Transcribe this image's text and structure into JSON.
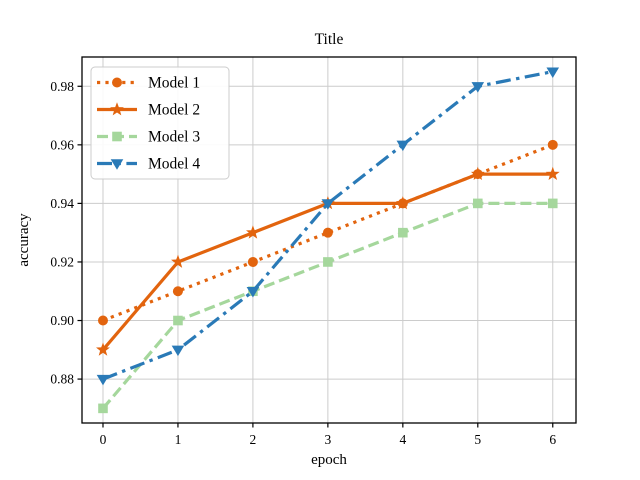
{
  "chart_data": {
    "type": "line",
    "title": "Title",
    "xlabel": "epoch",
    "ylabel": "accuracy",
    "x": [
      0,
      1,
      2,
      3,
      4,
      5,
      6
    ],
    "x_tick_labels": [
      "0",
      "1",
      "2",
      "3",
      "4",
      "5",
      "6"
    ],
    "y_tick_labels": [
      "0.88",
      "0.90",
      "0.92",
      "0.94",
      "0.96",
      "0.98"
    ],
    "xlim": [
      -0.28,
      6.31
    ],
    "ylim": [
      0.865,
      0.99
    ],
    "grid": true,
    "legend_position": "upper left",
    "series": [
      {
        "name": "Model 1",
        "values": [
          0.9,
          0.91,
          0.92,
          0.93,
          0.94,
          0.95,
          0.96
        ],
        "color": "#e2640e",
        "linestyle": "dotted",
        "marker": "circle"
      },
      {
        "name": "Model 2",
        "values": [
          0.89,
          0.92,
          0.93,
          0.94,
          0.94,
          0.95,
          0.95
        ],
        "color": "#e2640e",
        "linestyle": "solid",
        "marker": "star"
      },
      {
        "name": "Model 3",
        "values": [
          0.87,
          0.9,
          0.91,
          0.92,
          0.93,
          0.94,
          0.94
        ],
        "color": "#a5d79c",
        "linestyle": "dashed",
        "marker": "square"
      },
      {
        "name": "Model 4",
        "values": [
          0.88,
          0.89,
          0.91,
          0.94,
          0.96,
          0.98,
          0.985
        ],
        "color": "#2a7ab7",
        "linestyle": "dashdot",
        "marker": "triangle-down"
      }
    ],
    "colors": {
      "axis": "#000000",
      "grid": "#cccccc",
      "background": "#ffffff",
      "legend_border": "#cccccc"
    }
  }
}
